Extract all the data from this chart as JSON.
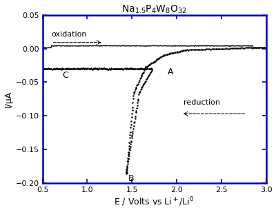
{
  "title": "Na$_{1.5}$P$_4$W$_8$O$_{32}$",
  "xlabel": "E / Volts vs Li$^+$/Li$^0$",
  "ylabel": "I/μA",
  "xlim": [
    0.5,
    3.0
  ],
  "ylim": [
    -0.2,
    0.05
  ],
  "xticks": [
    0.5,
    1.0,
    1.5,
    2.0,
    2.5,
    3.0
  ],
  "yticks": [
    -0.2,
    -0.15,
    -0.1,
    -0.05,
    0.0,
    0.05
  ],
  "background_color": "#ffffff",
  "spine_color": "#0000bb",
  "tick_color": "#0000bb",
  "label_color": "#000000",
  "title_color": "#000000",
  "curve_color": "#000000",
  "label_A": "A",
  "label_B": "B",
  "label_C": "C",
  "label_oxidation": "oxidation",
  "label_reduction": "reduction"
}
